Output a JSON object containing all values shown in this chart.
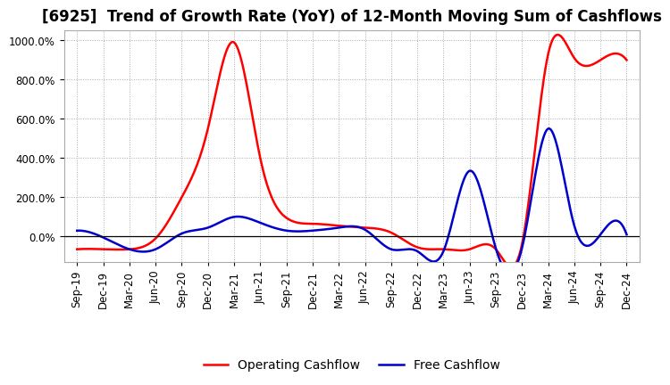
{
  "title": "[6925]  Trend of Growth Rate (YoY) of 12-Month Moving Sum of Cashflows",
  "background_color": "#ffffff",
  "grid_color": "#aaaaaa",
  "operating_color": "#ff0000",
  "free_color": "#0000cc",
  "ylim": [
    -130,
    1050
  ],
  "yticks": [
    0,
    200,
    400,
    600,
    800,
    1000
  ],
  "x_labels": [
    "Sep-19",
    "Dec-19",
    "Mar-20",
    "Jun-20",
    "Sep-20",
    "Dec-20",
    "Mar-21",
    "Jun-21",
    "Sep-21",
    "Dec-21",
    "Mar-22",
    "Jun-22",
    "Sep-22",
    "Dec-22",
    "Mar-23",
    "Jun-23",
    "Sep-23",
    "Dec-23",
    "Mar-24",
    "Jun-24",
    "Sep-24",
    "Dec-24"
  ],
  "operating_cashflow": [
    -65,
    -65,
    -65,
    -10,
    200,
    550,
    990,
    400,
    95,
    65,
    55,
    45,
    20,
    -55,
    -65,
    -65,
    -65,
    -40,
    930,
    910,
    900,
    900
  ],
  "free_cashflow": [
    30,
    -5,
    -65,
    -65,
    15,
    45,
    100,
    70,
    30,
    30,
    45,
    35,
    -65,
    -75,
    -75,
    335,
    -60,
    -60,
    550,
    55,
    10,
    10
  ],
  "legend_labels": [
    "Operating Cashflow",
    "Free Cashflow"
  ],
  "title_fontsize": 12,
  "tick_fontsize": 8.5,
  "legend_fontsize": 10
}
